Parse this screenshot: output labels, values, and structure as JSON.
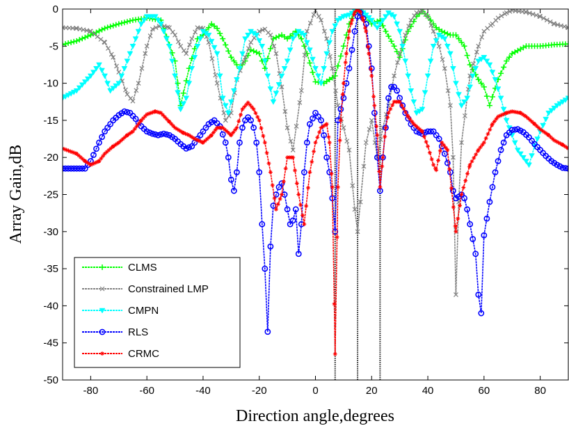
{
  "chart_data": {
    "type": "line",
    "title": "",
    "xlabel": "Direction angle,degrees",
    "ylabel": "Array Gain,dB",
    "xlim": [
      -90,
      90
    ],
    "ylim": [
      -50,
      0
    ],
    "xticks": [
      -80,
      -60,
      -40,
      -20,
      0,
      20,
      40,
      60,
      80
    ],
    "yticks": [
      0,
      -5,
      -10,
      -15,
      -20,
      -25,
      -30,
      -35,
      -40,
      -45,
      -50
    ],
    "grid": false,
    "legend_position": "lower-left",
    "vertical_lines": [
      7,
      15,
      23
    ],
    "series": [
      {
        "name": "CLMS",
        "color": "#00ff00",
        "marker": "plus",
        "x": [
          -90,
          -85,
          -80,
          -75,
          -70,
          -65,
          -60,
          -55,
          -50,
          -48,
          -45,
          -42,
          -40,
          -37,
          -35,
          -33,
          -30,
          -27,
          -25,
          -23,
          -20,
          -18,
          -15,
          -12,
          -10,
          -7,
          -5,
          -3,
          0,
          3,
          5,
          7,
          10,
          12,
          14,
          15,
          17,
          20,
          23,
          25,
          28,
          30,
          33,
          36,
          38,
          40,
          43,
          45,
          48,
          50,
          53,
          55,
          58,
          60,
          62,
          65,
          68,
          70,
          75,
          80,
          85,
          90
        ],
        "y": [
          -4.8,
          -4.3,
          -3.5,
          -2.6,
          -2.0,
          -1.5,
          -1.2,
          -1.5,
          -7.0,
          -13.0,
          -8.0,
          -4.0,
          -3.5,
          -2.0,
          -2.6,
          -4.0,
          -6.5,
          -8.0,
          -7.0,
          -5.5,
          -6.0,
          -8.0,
          -4.0,
          -3.5,
          -4.0,
          -3.0,
          -4.0,
          -6.0,
          -9.8,
          -10.0,
          -9.5,
          -9.0,
          -5.0,
          -2.0,
          -0.5,
          -0.3,
          -0.5,
          -2.0,
          -1.5,
          -3.0,
          -5.0,
          -6.5,
          -3.0,
          -1.0,
          -0.3,
          -1.0,
          -2.5,
          -3.0,
          -3.5,
          -3.5,
          -5.0,
          -7.5,
          -9.5,
          -10.5,
          -13.0,
          -9.5,
          -7.0,
          -6.0,
          -5.0,
          -5.0,
          -4.8,
          -4.7
        ]
      },
      {
        "name": "Constrained LMP",
        "color": "#808080",
        "marker": "x",
        "x": [
          -90,
          -85,
          -80,
          -75,
          -72,
          -70,
          -67,
          -65,
          -63,
          -60,
          -58,
          -55,
          -52,
          -50,
          -48,
          -46,
          -44,
          -42,
          -40,
          -38,
          -35,
          -32,
          -30,
          -28,
          -25,
          -23,
          -20,
          -18,
          -16,
          -14,
          -12,
          -10,
          -8,
          -5,
          -3,
          0,
          2,
          4,
          6,
          8,
          10,
          12,
          14,
          15,
          16,
          18,
          20,
          22,
          24,
          26,
          28,
          30,
          32,
          34,
          36,
          38,
          40,
          42,
          44,
          46,
          48,
          49,
          50,
          51,
          52,
          55,
          58,
          60,
          63,
          65,
          68,
          70,
          75,
          80,
          85,
          90
        ],
        "y": [
          -2.5,
          -2.6,
          -3.0,
          -4.5,
          -6.5,
          -8.5,
          -11.5,
          -12.4,
          -10.0,
          -5.0,
          -2.7,
          -2.2,
          -2.5,
          -3.5,
          -5.0,
          -6.0,
          -4.0,
          -2.5,
          -2.6,
          -4.5,
          -10.0,
          -15.0,
          -14.0,
          -9.5,
          -6.5,
          -4.5,
          -3.0,
          -2.7,
          -3.5,
          -6.0,
          -10.5,
          -16.0,
          -19.0,
          -11.0,
          -3.0,
          -0.2,
          -1.5,
          -4.0,
          -8.0,
          -13.0,
          -16.0,
          -19.0,
          -27.0,
          -30.0,
          -26.0,
          -18.0,
          -15.0,
          -20.0,
          -16.0,
          -13.0,
          -9.0,
          -6.0,
          -3.5,
          -1.5,
          -0.5,
          -0.3,
          -1.0,
          -3.0,
          -5.0,
          -8.0,
          -13.0,
          -20.0,
          -38.5,
          -26.0,
          -18.0,
          -9.0,
          -5.0,
          -3.0,
          -2.0,
          -1.2,
          -0.5,
          -0.2,
          -0.4,
          -1.0,
          -2.0,
          -2.5
        ]
      },
      {
        "name": "CMPN",
        "color": "#00ffff",
        "marker": "triangle-down",
        "x": [
          -90,
          -85,
          -80,
          -77,
          -75,
          -73,
          -70,
          -68,
          -65,
          -62,
          -60,
          -57,
          -55,
          -52,
          -50,
          -48,
          -46,
          -44,
          -42,
          -40,
          -38,
          -35,
          -33,
          -31,
          -29,
          -27,
          -25,
          -23,
          -21,
          -19,
          -17,
          -15,
          -12,
          -10,
          -8,
          -6,
          -4,
          -2,
          0,
          2,
          4,
          6,
          8,
          10,
          12,
          14,
          15,
          16,
          18,
          20,
          22,
          24,
          26,
          28,
          30,
          32,
          34,
          36,
          38,
          40,
          42,
          44,
          46,
          48,
          50,
          52,
          54,
          56,
          58,
          60,
          62,
          64,
          66,
          68,
          70,
          72,
          74,
          76,
          78,
          80,
          83,
          86,
          90
        ],
        "y": [
          -12.0,
          -11.0,
          -9.0,
          -7.5,
          -9.0,
          -11.0,
          -10.0,
          -8.0,
          -5.0,
          -2.0,
          -1.0,
          -1.0,
          -2.0,
          -5.0,
          -9.0,
          -13.5,
          -12.0,
          -8.0,
          -5.0,
          -3.0,
          -3.5,
          -6.0,
          -12.0,
          -14.0,
          -11.0,
          -8.0,
          -4.0,
          -3.0,
          -3.5,
          -5.0,
          -9.0,
          -12.5,
          -9.0,
          -7.0,
          -4.0,
          -3.0,
          -3.5,
          -5.5,
          -8.0,
          -10.0,
          -6.0,
          -3.0,
          -1.5,
          -1.0,
          -0.8,
          -0.3,
          -0.1,
          -0.2,
          -0.8,
          -1.5,
          -2.5,
          -1.5,
          -0.5,
          -1.0,
          -3.0,
          -7.0,
          -11.0,
          -14.0,
          -13.5,
          -9.0,
          -5.0,
          -3.5,
          -4.0,
          -6.0,
          -10.0,
          -13.0,
          -12.0,
          -9.0,
          -7.0,
          -6.5,
          -7.5,
          -9.5,
          -12.0,
          -15.0,
          -17.0,
          -19.0,
          -20.0,
          -21.0,
          -18.5,
          -16.5,
          -14.0,
          -13.0,
          -12.0
        ]
      },
      {
        "name": "RLS",
        "color": "#0000ff",
        "marker": "circle",
        "x": [
          -90,
          -85,
          -82,
          -80,
          -77,
          -75,
          -72,
          -70,
          -68,
          -66,
          -64,
          -62,
          -60,
          -58,
          -56,
          -54,
          -52,
          -50,
          -48,
          -46,
          -44,
          -42,
          -40,
          -38,
          -36,
          -34,
          -32,
          -31,
          -30,
          -29,
          -28,
          -27,
          -26,
          -25,
          -24,
          -23,
          -22,
          -21,
          -20,
          -19,
          -18,
          -17,
          -16,
          -15,
          -14,
          -13,
          -12,
          -11,
          -10,
          -9,
          -8,
          -7,
          -6,
          -5,
          -4,
          -3,
          -2,
          0,
          2,
          3,
          4,
          5,
          6,
          7,
          8,
          10,
          12,
          14,
          15,
          16,
          18,
          20,
          22,
          23,
          24,
          25,
          26,
          27,
          28,
          29,
          30,
          32,
          34,
          36,
          38,
          40,
          42,
          44,
          46,
          48,
          49,
          50,
          51,
          52,
          53,
          54,
          55,
          56,
          57,
          58,
          59,
          60,
          62,
          64,
          66,
          68,
          70,
          72,
          74,
          76,
          78,
          80,
          82,
          84,
          86,
          88,
          90
        ],
        "y": [
          -21.5,
          -21.5,
          -21.5,
          -20.5,
          -18.0,
          -16.5,
          -15.0,
          -14.3,
          -13.8,
          -14.0,
          -14.8,
          -15.8,
          -16.5,
          -16.8,
          -17.0,
          -16.8,
          -17.0,
          -17.5,
          -18.2,
          -18.8,
          -18.5,
          -17.5,
          -16.5,
          -15.5,
          -15.0,
          -15.8,
          -18.0,
          -20.0,
          -23.0,
          -24.5,
          -22.0,
          -18.0,
          -16.0,
          -15.0,
          -14.6,
          -15.0,
          -16.0,
          -18.0,
          -22.0,
          -29.0,
          -35.0,
          -43.5,
          -32.0,
          -26.5,
          -25.0,
          -24.0,
          -23.5,
          -25.0,
          -27.0,
          -29.0,
          -28.5,
          -27.0,
          -33.0,
          -29.0,
          -22.0,
          -18.0,
          -15.5,
          -14.0,
          -15.0,
          -17.0,
          -20.0,
          -22.0,
          -25.5,
          -30.0,
          -15.0,
          -12.0,
          -8.0,
          -3.0,
          -1.0,
          -0.5,
          -2.0,
          -8.0,
          -20.0,
          -24.5,
          -20.0,
          -16.0,
          -12.0,
          -10.5,
          -10.5,
          -11.0,
          -12.0,
          -14.0,
          -15.5,
          -16.5,
          -16.8,
          -16.5,
          -16.5,
          -17.5,
          -19.5,
          -22.0,
          -24.5,
          -25.5,
          -25.3,
          -25.0,
          -25.5,
          -27.0,
          -29.0,
          -31.0,
          -33.0,
          -38.5,
          -41.0,
          -30.5,
          -26.0,
          -22.0,
          -19.0,
          -17.0,
          -16.3,
          -16.2,
          -16.6,
          -17.3,
          -18.2,
          -19.0,
          -19.8,
          -20.5,
          -21.0,
          -21.4,
          -21.5
        ]
      },
      {
        "name": "CRMC",
        "color": "#ff0000",
        "marker": "star",
        "x": [
          -90,
          -85,
          -82,
          -80,
          -77,
          -75,
          -72,
          -70,
          -67,
          -65,
          -62,
          -60,
          -57,
          -55,
          -52,
          -50,
          -47,
          -45,
          -43,
          -40,
          -37,
          -35,
          -33,
          -30,
          -28,
          -26,
          -24,
          -22,
          -20,
          -18,
          -16,
          -14,
          -12,
          -10,
          -8,
          -6,
          -4,
          -2,
          0,
          2,
          4,
          5,
          6,
          7,
          8,
          9,
          10,
          11,
          12,
          13,
          14,
          15,
          16,
          17,
          18,
          19,
          20,
          21,
          22,
          23,
          24,
          25,
          26,
          28,
          30,
          33,
          35,
          38,
          40,
          42,
          43,
          45,
          47,
          50,
          52,
          55,
          58,
          60,
          63,
          65,
          68,
          70,
          73,
          75,
          78,
          80,
          83,
          85,
          88,
          90
        ],
        "y": [
          -18.8,
          -19.5,
          -20.5,
          -21.0,
          -20.5,
          -19.5,
          -18.5,
          -18.0,
          -17.0,
          -16.5,
          -15.0,
          -14.2,
          -13.8,
          -14.0,
          -15.2,
          -16.0,
          -16.7,
          -17.0,
          -17.5,
          -18.0,
          -17.0,
          -16.0,
          -16.0,
          -17.0,
          -16.0,
          -13.5,
          -12.6,
          -13.5,
          -15.0,
          -18.0,
          -22.0,
          -27.0,
          -25.0,
          -20.0,
          -20.0,
          -25.0,
          -29.0,
          -22.0,
          -18.0,
          -16.0,
          -15.5,
          -18.0,
          -24.0,
          -46.5,
          -24.0,
          -15.0,
          -10.0,
          -6.0,
          -3.0,
          -1.5,
          -0.4,
          -0.1,
          -0.4,
          -1.5,
          -3.0,
          -6.0,
          -9.0,
          -13.0,
          -17.0,
          -24.0,
          -20.0,
          -16.0,
          -14.0,
          -12.5,
          -12.5,
          -14.5,
          -15.5,
          -16.5,
          -18.5,
          -21.0,
          -21.7,
          -18.0,
          -19.0,
          -30.0,
          -25.0,
          -21.0,
          -19.0,
          -18.0,
          -15.5,
          -14.5,
          -14.0,
          -13.8,
          -14.0,
          -14.5,
          -15.5,
          -16.2,
          -17.0,
          -17.7,
          -18.3,
          -18.8
        ]
      }
    ]
  }
}
